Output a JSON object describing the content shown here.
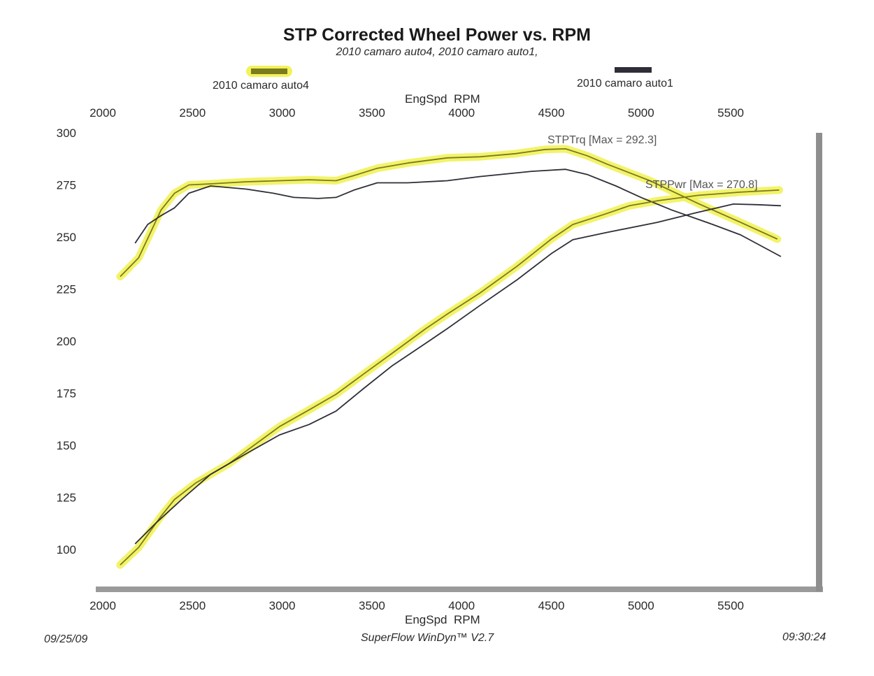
{
  "chart_data": {
    "type": "line",
    "title": "STP Corrected Wheel Power vs. RPM",
    "subtitle": "2010 camaro auto4, 2010 camaro auto1,",
    "xlabel": "EngSpd  RPM",
    "ylabel": "",
    "xlim": [
      2000,
      5900
    ],
    "ylim": [
      90,
      300
    ],
    "x_ticks": [
      "2000",
      "2500",
      "3000",
      "3500",
      "4000",
      "4500",
      "5000",
      "5500"
    ],
    "y_ticks": [
      "300",
      "275",
      "250",
      "225",
      "200",
      "175",
      "150",
      "125",
      "100"
    ],
    "grid": false,
    "legend": [
      {
        "name": "2010 camaro auto4",
        "color": "#7a7a1e",
        "highlight": "#f2f25a",
        "position": "top-left"
      },
      {
        "name": "2010 camaro auto1",
        "color": "#2e2e38",
        "position": "top-right"
      }
    ],
    "annotations": {
      "torque": "STPTrq [Max = 292.3]",
      "power": "STPPwr [Max = 270.8]"
    },
    "series": [
      {
        "name": "2010 camaro auto4 STPTrq",
        "run": "auto4",
        "color": "#7a7a1e",
        "highlight": true,
        "x": [
          2097,
          2200,
          2325,
          2400,
          2480,
          2600,
          2800,
          2985,
          3150,
          3300,
          3400,
          3530,
          3700,
          3920,
          4100,
          4300,
          4465,
          4580,
          4700,
          4810,
          5050,
          5320,
          5555,
          5760
        ],
        "y": [
          231,
          240,
          263,
          271,
          275,
          275.5,
          276.5,
          277,
          277.5,
          277,
          279.5,
          283,
          285.5,
          288,
          288.5,
          290,
          292,
          292.3,
          289,
          285,
          277,
          266,
          257,
          249
        ]
      },
      {
        "name": "2010 camaro auto1 STPTrq",
        "run": "auto1",
        "color": "#2e2e38",
        "highlight": false,
        "x": [
          2180,
          2250,
          2320,
          2400,
          2480,
          2600,
          2800,
          2950,
          3065,
          3200,
          3300,
          3400,
          3530,
          3700,
          3920,
          4100,
          4390,
          4580,
          4700,
          4860,
          5000,
          5170,
          5400,
          5555,
          5780
        ],
        "y": [
          247,
          256,
          260,
          264,
          271,
          274.5,
          273,
          271,
          269,
          268.5,
          269,
          272.5,
          276,
          276,
          277,
          279,
          281.5,
          282.5,
          280,
          274.5,
          269,
          263,
          256,
          251,
          240.6
        ]
      },
      {
        "name": "2010 camaro auto4 STPPwr",
        "run": "auto4",
        "color": "#7a7a1e",
        "highlight": true,
        "x": [
          2097,
          2200,
          2325,
          2400,
          2520,
          2700,
          2985,
          3150,
          3300,
          3450,
          3610,
          3800,
          3920,
          4100,
          4310,
          4500,
          4620,
          4800,
          4935,
          5100,
          5320,
          5550,
          5770
        ],
        "y": [
          92.6,
          101,
          116,
          124,
          132,
          141,
          159,
          167,
          174.5,
          184,
          194,
          206,
          213,
          223,
          236,
          249,
          256,
          261,
          265,
          267.5,
          270,
          271.5,
          272.5
        ]
      },
      {
        "name": "2010 camaro auto1 STPPwr",
        "run": "auto1",
        "color": "#2e2e38",
        "highlight": false,
        "x": [
          2180,
          2300,
          2440,
          2600,
          2800,
          2985,
          3150,
          3300,
          3450,
          3610,
          3800,
          3920,
          4100,
          4310,
          4500,
          4620,
          4800,
          5090,
          5300,
          5515,
          5650,
          5780
        ],
        "y": [
          102.7,
          113,
          124,
          136,
          146,
          155,
          160,
          166.4,
          177,
          188,
          199,
          206,
          217,
          229.5,
          242,
          248.7,
          252,
          257,
          261.5,
          265.8,
          265.5,
          265
        ]
      }
    ]
  },
  "footer": {
    "date": "09/25/09",
    "software": "SuperFlow WinDyn™ V2.7",
    "time": "09:30:24"
  }
}
